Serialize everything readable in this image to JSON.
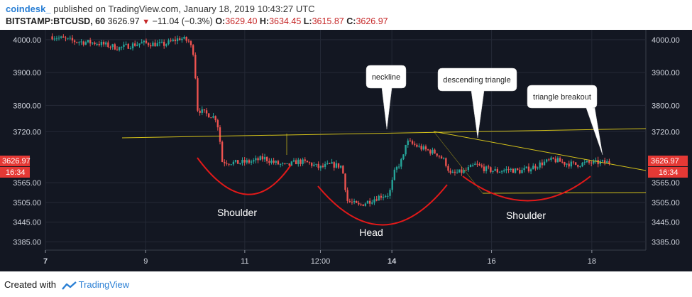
{
  "header": {
    "brand": "coindesk_",
    "published": "published on TradingView.com, January 18, 2019 10:43:27 UTC",
    "symbol": "BITSTAMP:BTCUSD, 60",
    "last": "3626.97",
    "change": "−11.04 (−0.3%)",
    "o_label": "O:",
    "o_value": "3629.40",
    "h_label": "H:",
    "h_value": "3634.45",
    "l_label": "L:",
    "l_value": "3615.87",
    "c_label": "C:",
    "c_value": "3626.97"
  },
  "footer": {
    "created_with": "Created with",
    "tradingview": "TradingView"
  },
  "colors": {
    "bg": "#131722",
    "grid": "#2a2e39",
    "up": "#26a69a",
    "down": "#ef5350",
    "trend": "#d4c21a",
    "arc": "#e11919",
    "price_badge": "#e53935",
    "brand": "#2a7fd4"
  },
  "annotations": {
    "shoulder_left": "Shoulder",
    "head": "Head",
    "shoulder_right": "Shoulder",
    "neckline": "neckline",
    "descending_triangle": "descending triangle",
    "triangle_breakout": "triangle breakout"
  },
  "badges": {
    "price": "3626.97",
    "countdown": "16:34"
  },
  "chart_data": {
    "type": "candlestick",
    "symbol": "BITSTAMP:BTCUSD",
    "interval": "60",
    "x_ticks": [
      "7",
      "9",
      "11",
      "12:00",
      "14",
      "16",
      "18"
    ],
    "y_ticks": [
      "4000.00",
      "3900.00",
      "3800.00",
      "3720.00",
      "3565.00",
      "3505.00",
      "3445.00",
      "3385.00"
    ],
    "ylim": [
      3360,
      4030
    ],
    "last_price": 3626.97,
    "path": [
      [
        0.0,
        4010
      ],
      [
        0.04,
        3995
      ],
      [
        0.08,
        3990
      ],
      [
        0.12,
        3975
      ],
      [
        0.16,
        3990
      ],
      [
        0.2,
        3985
      ],
      [
        0.23,
        4005
      ],
      [
        0.245,
        3995
      ],
      [
        0.255,
        3955
      ],
      [
        0.26,
        3790
      ],
      [
        0.275,
        3775
      ],
      [
        0.285,
        3770
      ],
      [
        0.295,
        3760
      ],
      [
        0.3,
        3710
      ],
      [
        0.305,
        3630
      ],
      [
        0.33,
        3625
      ],
      [
        0.36,
        3630
      ],
      [
        0.38,
        3640
      ],
      [
        0.4,
        3625
      ],
      [
        0.42,
        3615
      ],
      [
        0.44,
        3630
      ],
      [
        0.46,
        3625
      ],
      [
        0.48,
        3610
      ],
      [
        0.5,
        3620
      ],
      [
        0.52,
        3615
      ],
      [
        0.53,
        3510
      ],
      [
        0.55,
        3495
      ],
      [
        0.57,
        3510
      ],
      [
        0.59,
        3525
      ],
      [
        0.605,
        3530
      ],
      [
        0.615,
        3600
      ],
      [
        0.63,
        3640
      ],
      [
        0.635,
        3690
      ],
      [
        0.65,
        3680
      ],
      [
        0.67,
        3665
      ],
      [
        0.69,
        3655
      ],
      [
        0.705,
        3630
      ],
      [
        0.715,
        3590
      ],
      [
        0.74,
        3600
      ],
      [
        0.76,
        3620
      ],
      [
        0.78,
        3605
      ],
      [
        0.8,
        3600
      ],
      [
        0.82,
        3605
      ],
      [
        0.84,
        3600
      ],
      [
        0.86,
        3610
      ],
      [
        0.88,
        3625
      ],
      [
        0.9,
        3635
      ],
      [
        0.92,
        3625
      ],
      [
        0.94,
        3620
      ],
      [
        0.96,
        3625
      ],
      [
        1.0,
        3627
      ]
    ]
  }
}
